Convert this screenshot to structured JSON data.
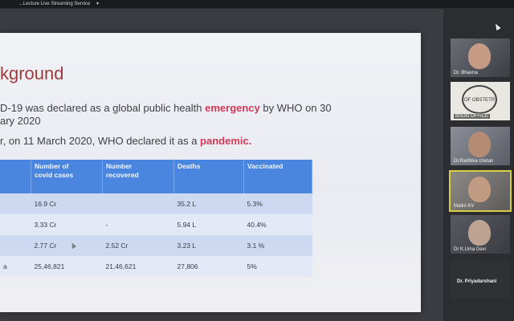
{
  "window": {
    "title": "...Lecture Live Streaming Service"
  },
  "slide": {
    "title": "kground",
    "bullet1_line1_prefix": "D-19 was declared as a global public health ",
    "bullet1_highlight": "emergency",
    "bullet1_line1_suffix": " by WHO on 30",
    "bullet1_line2": "ary 2020",
    "bullet2_prefix": "r, on 11 March 2020, WHO declared it as a ",
    "bullet2_highlight": "pandemic.",
    "highlight_color": "#d23a57",
    "title_color": "#9d3a3a",
    "table": {
      "headers": [
        "",
        "Number of\ncovid cases",
        "Number\nrecovered",
        "Deaths",
        "Vaccinated"
      ],
      "rows": [
        [
          "",
          "16.9 Cr",
          "",
          "35.2 L",
          "5.3%"
        ],
        [
          "",
          "3.33 Cr",
          "-",
          "5.94 L",
          "40.4%"
        ],
        [
          "",
          "2.77 Cr",
          "2.52 Cr",
          "3.23 L",
          "3.1 %"
        ],
        [
          "a",
          "25,46,821",
          "21,46,621",
          "27,806",
          "5%"
        ]
      ]
    }
  },
  "participants": [
    {
      "name": "Dr. Bhavna"
    },
    {
      "name": "BSOG OFFICE",
      "logo_text": "OF OBSTETR"
    },
    {
      "name": "Dr.Radhika chetan"
    },
    {
      "name": "Malini KV",
      "active": true
    },
    {
      "name": "Dr K.Uma Devi"
    },
    {
      "name": "Dr. Priyadarshani"
    }
  ]
}
